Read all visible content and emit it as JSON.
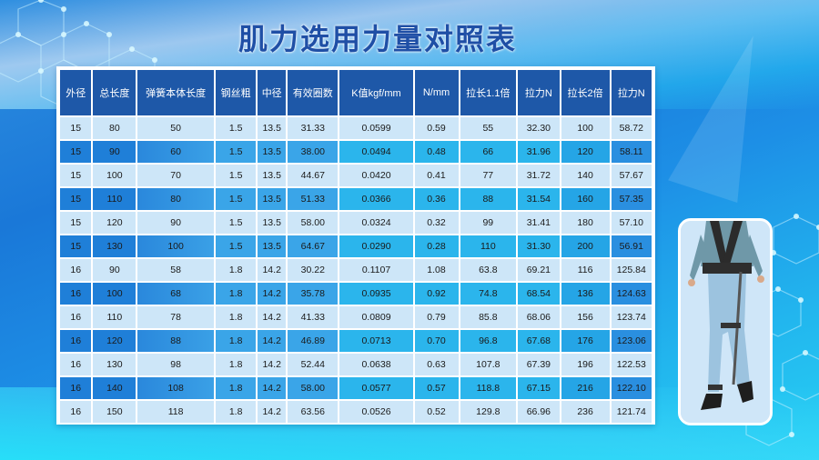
{
  "title": "肌力选用力量对照表",
  "table": {
    "headers": [
      "外径",
      "总长度",
      "弹簧本体长度",
      "钢丝粗",
      "中径",
      "有效圈数",
      "K值kgf/mm",
      "N/mm",
      "拉长1.1倍",
      "拉力N",
      "拉长2倍",
      "拉力N"
    ],
    "rows": [
      [
        "15",
        "80",
        "50",
        "1.5",
        "13.5",
        "31.33",
        "0.0599",
        "0.59",
        "55",
        "32.30",
        "100",
        "58.72"
      ],
      [
        "15",
        "90",
        "60",
        "1.5",
        "13.5",
        "38.00",
        "0.0494",
        "0.48",
        "66",
        "31.96",
        "120",
        "58.11"
      ],
      [
        "15",
        "100",
        "70",
        "1.5",
        "13.5",
        "44.67",
        "0.0420",
        "0.41",
        "77",
        "31.72",
        "140",
        "57.67"
      ],
      [
        "15",
        "110",
        "80",
        "1.5",
        "13.5",
        "51.33",
        "0.0366",
        "0.36",
        "88",
        "31.54",
        "160",
        "57.35"
      ],
      [
        "15",
        "120",
        "90",
        "1.5",
        "13.5",
        "58.00",
        "0.0324",
        "0.32",
        "99",
        "31.41",
        "180",
        "57.10"
      ],
      [
        "15",
        "130",
        "100",
        "1.5",
        "13.5",
        "64.67",
        "0.0290",
        "0.28",
        "110",
        "31.30",
        "200",
        "56.91"
      ],
      [
        "16",
        "90",
        "58",
        "1.8",
        "14.2",
        "30.22",
        "0.1107",
        "1.08",
        "63.8",
        "69.21",
        "116",
        "125.84"
      ],
      [
        "16",
        "100",
        "68",
        "1.8",
        "14.2",
        "35.78",
        "0.0935",
        "0.92",
        "74.8",
        "68.54",
        "136",
        "124.63"
      ],
      [
        "16",
        "110",
        "78",
        "1.8",
        "14.2",
        "41.33",
        "0.0809",
        "0.79",
        "85.8",
        "68.06",
        "156",
        "123.74"
      ],
      [
        "16",
        "120",
        "88",
        "1.8",
        "14.2",
        "46.89",
        "0.0713",
        "0.70",
        "96.8",
        "67.68",
        "176",
        "123.06"
      ],
      [
        "16",
        "130",
        "98",
        "1.8",
        "14.2",
        "52.44",
        "0.0638",
        "0.63",
        "107.8",
        "67.39",
        "196",
        "122.53"
      ],
      [
        "16",
        "140",
        "108",
        "1.8",
        "14.2",
        "58.00",
        "0.0577",
        "0.57",
        "118.8",
        "67.15",
        "216",
        "122.10"
      ],
      [
        "16",
        "150",
        "118",
        "1.8",
        "14.2",
        "63.56",
        "0.0526",
        "0.52",
        "129.8",
        "66.96",
        "236",
        "121.74"
      ]
    ]
  },
  "photo": {
    "subject": "person-wearing-leg-exoskeleton"
  },
  "colors": {
    "title": "#1f4fa6",
    "header_bg": "#1e58a8",
    "row_light": "#cde6f8",
    "row_dark": "#2bb5ec"
  }
}
